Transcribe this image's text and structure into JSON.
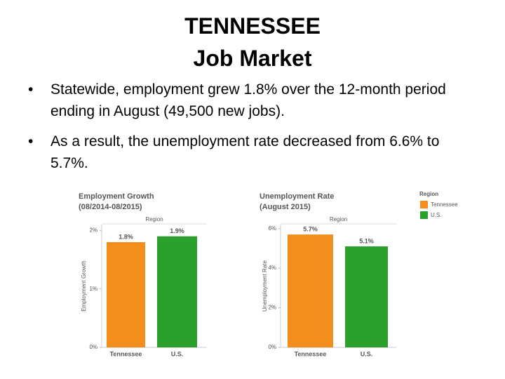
{
  "title_lines": [
    "TENNESSEE",
    "Job Market"
  ],
  "bullets": [
    "Statewide, employment grew 1.8% over the 12-month period ending in August (49,500 new jobs).",
    "As a result, the unemployment rate decreased from 6.6% to 5.7%."
  ],
  "legend": {
    "title": "Region",
    "items": [
      {
        "label": "Tennessee",
        "color": "#f28e1c"
      },
      {
        "label": "U.S.",
        "color": "#2ca02c"
      }
    ]
  },
  "chart_data": [
    {
      "type": "bar",
      "title": "Employment Growth",
      "subtitle": "(08/2014-08/2015)",
      "x_header": "Region",
      "y_label": "Employment Growth",
      "categories": [
        "Tennessee",
        "U.S."
      ],
      "values": [
        1.8,
        1.9
      ],
      "value_labels": [
        "1.8%",
        "1.9%"
      ],
      "colors": [
        "#f28e1c",
        "#2ca02c"
      ],
      "ylim": [
        0,
        2.1
      ],
      "yticks": [
        {
          "value": 0,
          "label": "0%"
        },
        {
          "value": 1,
          "label": "1%"
        },
        {
          "value": 2,
          "label": "2%"
        }
      ]
    },
    {
      "type": "bar",
      "title": "Unemployment Rate",
      "subtitle": "(August 2015)",
      "x_header": "Region",
      "y_label": "Unemployment Rate",
      "categories": [
        "Tennessee",
        "U.S."
      ],
      "values": [
        5.7,
        5.1
      ],
      "value_labels": [
        "5.7%",
        "5.1%"
      ],
      "colors": [
        "#f28e1c",
        "#2ca02c"
      ],
      "ylim": [
        0,
        6.2
      ],
      "yticks": [
        {
          "value": 0,
          "label": "0%"
        },
        {
          "value": 2,
          "label": "2%"
        },
        {
          "value": 4,
          "label": "4%"
        },
        {
          "value": 6,
          "label": "6%"
        }
      ]
    }
  ]
}
